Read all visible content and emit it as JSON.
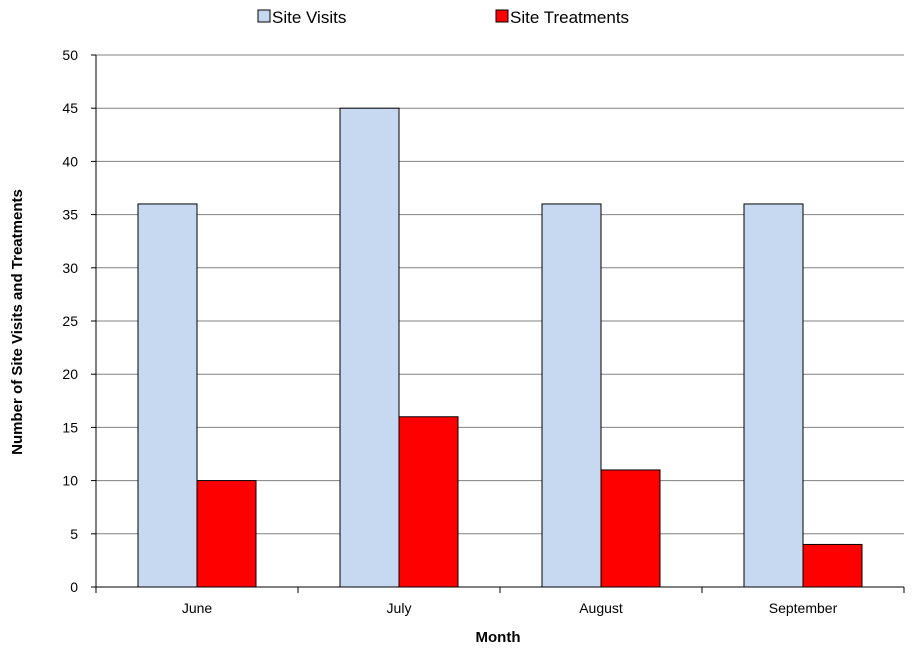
{
  "chart_data": {
    "type": "bar",
    "title": "",
    "xlabel": "Month",
    "ylabel": "Number of Site Visits and Treatments",
    "categories": [
      "June",
      "July",
      "August",
      "September"
    ],
    "series": [
      {
        "name": "Site Visits",
        "values": [
          36,
          45,
          36,
          36
        ],
        "color": "#C6D9F1"
      },
      {
        "name": "Site Treatments",
        "values": [
          10,
          16,
          11,
          4
        ],
        "color": "#FF0000"
      }
    ],
    "ylim": [
      0,
      50
    ],
    "yticks": [
      0,
      5,
      10,
      15,
      20,
      25,
      30,
      35,
      40,
      45,
      50
    ],
    "grid": true,
    "legend": "top"
  }
}
